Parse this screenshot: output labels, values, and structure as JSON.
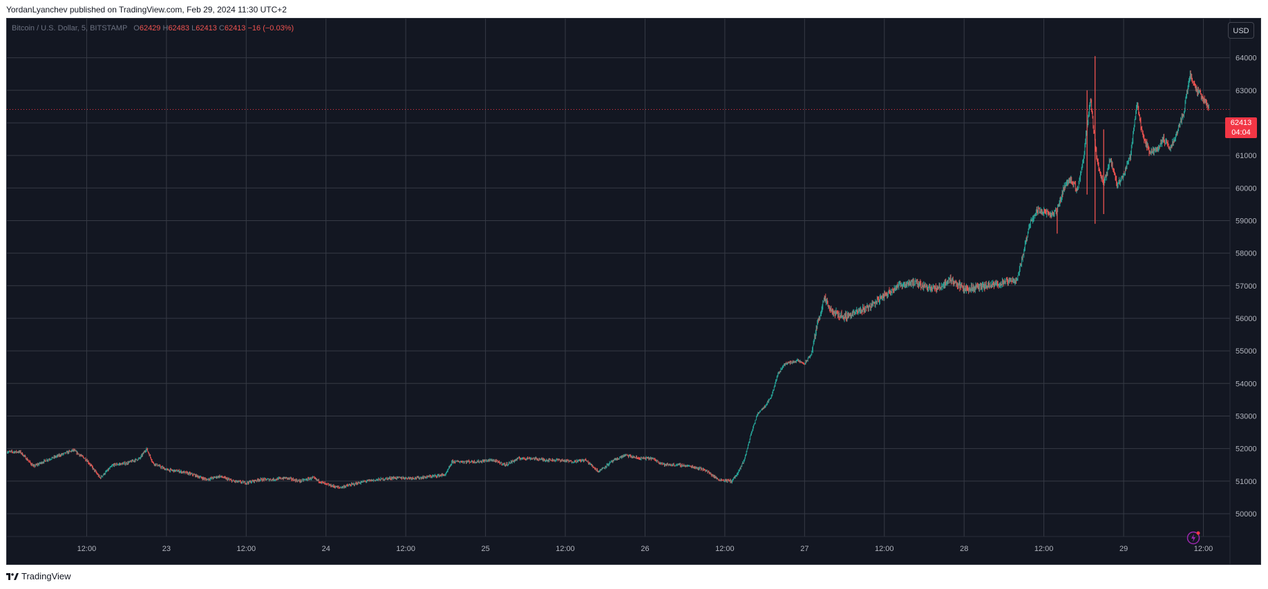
{
  "header": {
    "publisher_line": "YordanLyanchev published on TradingView.com, Feb 29, 2024 11:30 UTC+2"
  },
  "legend": {
    "symbol": "Bitcoin / U.S. Dollar, 5, BITSTAMP",
    "o_label": "O",
    "o_value": "62429",
    "h_label": "H",
    "h_value": "62483",
    "l_label": "L",
    "l_value": "62413",
    "c_label": "C",
    "c_value": "62413",
    "change": "−16 (−0.03%)"
  },
  "currency_button": {
    "label": "USD"
  },
  "price_tag": {
    "price": "62413",
    "countdown": "04:04"
  },
  "footer": {
    "brand": "TradingView"
  },
  "colors": {
    "background": "#131722",
    "grid": "#363a45",
    "up": "#26a69a",
    "down": "#ef5350",
    "tag": "#f23645"
  },
  "chart_data": {
    "type": "candlestick",
    "interval": "5",
    "y_ticks": [
      50000,
      51000,
      52000,
      53000,
      54000,
      55000,
      56000,
      57000,
      58000,
      59000,
      60000,
      61000,
      62000,
      63000,
      64000
    ],
    "y_tick_labels": [
      "50000",
      "51000",
      "52000",
      "53000",
      "54000",
      "55000",
      "56000",
      "57000",
      "58000",
      "59000",
      "60000",
      "61000",
      "62000",
      "63000",
      "64000"
    ],
    "ylim": [
      49300,
      65200
    ],
    "x_range_hours": [
      0,
      184
    ],
    "x_ticks": [
      {
        "hour": 12,
        "label": "12:00"
      },
      {
        "hour": 24,
        "label": "23"
      },
      {
        "hour": 36,
        "label": "12:00"
      },
      {
        "hour": 48,
        "label": "24"
      },
      {
        "hour": 60,
        "label": "12:00"
      },
      {
        "hour": 72,
        "label": "25"
      },
      {
        "hour": 84,
        "label": "12:00"
      },
      {
        "hour": 96,
        "label": "26"
      },
      {
        "hour": 108,
        "label": "12:00"
      },
      {
        "hour": 120,
        "label": "27"
      },
      {
        "hour": 132,
        "label": "12:00"
      },
      {
        "hour": 144,
        "label": "28"
      },
      {
        "hour": 156,
        "label": "12:00"
      },
      {
        "hour": 168,
        "label": "29"
      },
      {
        "hour": 180,
        "label": "12:00"
      }
    ],
    "last_price": 62413,
    "price_path": [
      [
        2,
        51900
      ],
      [
        4,
        51450
      ],
      [
        6,
        51650
      ],
      [
        8,
        51800
      ],
      [
        10,
        51950
      ],
      [
        12,
        51650
      ],
      [
        14,
        51100
      ],
      [
        16,
        51500
      ],
      [
        18,
        51550
      ],
      [
        20,
        51700
      ],
      [
        21,
        52000
      ],
      [
        22,
        51550
      ],
      [
        24,
        51350
      ],
      [
        26,
        51300
      ],
      [
        28,
        51200
      ],
      [
        30,
        51050
      ],
      [
        32,
        51150
      ],
      [
        34,
        51000
      ],
      [
        36,
        50950
      ],
      [
        38,
        51050
      ],
      [
        40,
        51050
      ],
      [
        42,
        51100
      ],
      [
        44,
        51000
      ],
      [
        46,
        51100
      ],
      [
        48,
        50900
      ],
      [
        50,
        50800
      ],
      [
        52,
        50900
      ],
      [
        54,
        51000
      ],
      [
        56,
        51050
      ],
      [
        58,
        51100
      ],
      [
        60,
        51100
      ],
      [
        62,
        51100
      ],
      [
        64,
        51150
      ],
      [
        66,
        51200
      ],
      [
        67,
        51600
      ],
      [
        69,
        51600
      ],
      [
        71,
        51600
      ],
      [
        73,
        51650
      ],
      [
        75,
        51500
      ],
      [
        77,
        51700
      ],
      [
        79,
        51700
      ],
      [
        81,
        51650
      ],
      [
        83,
        51650
      ],
      [
        85,
        51600
      ],
      [
        87,
        51650
      ],
      [
        89,
        51300
      ],
      [
        91,
        51600
      ],
      [
        93,
        51800
      ],
      [
        95,
        51700
      ],
      [
        97,
        51700
      ],
      [
        99,
        51500
      ],
      [
        101,
        51500
      ],
      [
        103,
        51450
      ],
      [
        105,
        51350
      ],
      [
        107,
        51050
      ],
      [
        109,
        51000
      ],
      [
        110,
        51250
      ],
      [
        111,
        51700
      ],
      [
        112,
        52500
      ],
      [
        113,
        53100
      ],
      [
        114,
        53300
      ],
      [
        115,
        53600
      ],
      [
        116,
        54300
      ],
      [
        117,
        54600
      ],
      [
        118,
        54650
      ],
      [
        119,
        54700
      ],
      [
        120,
        54600
      ],
      [
        121,
        54900
      ],
      [
        122,
        55900
      ],
      [
        123,
        56600
      ],
      [
        124,
        56200
      ],
      [
        126,
        56050
      ],
      [
        128,
        56200
      ],
      [
        130,
        56400
      ],
      [
        132,
        56700
      ],
      [
        134,
        57000
      ],
      [
        136,
        57100
      ],
      [
        138,
        57000
      ],
      [
        140,
        56900
      ],
      [
        142,
        57200
      ],
      [
        144,
        56900
      ],
      [
        146,
        56950
      ],
      [
        148,
        57000
      ],
      [
        150,
        57100
      ],
      [
        152,
        57200
      ],
      [
        153,
        58100
      ],
      [
        154,
        59000
      ],
      [
        155,
        59300
      ],
      [
        156,
        59300
      ],
      [
        157,
        59150
      ],
      [
        158,
        59300
      ],
      [
        159,
        60000
      ],
      [
        160,
        60300
      ],
      [
        161,
        59900
      ],
      [
        162,
        61000
      ],
      [
        163,
        62800
      ],
      [
        164,
        60800
      ],
      [
        165,
        60100
      ],
      [
        166,
        60900
      ],
      [
        167,
        60100
      ],
      [
        168,
        60400
      ],
      [
        169,
        61000
      ],
      [
        170,
        62600
      ],
      [
        171,
        61500
      ],
      [
        172,
        61100
      ],
      [
        173,
        61200
      ],
      [
        174,
        61500
      ],
      [
        175,
        61200
      ],
      [
        176,
        61700
      ],
      [
        177,
        62300
      ],
      [
        178,
        63500
      ],
      [
        179,
        63000
      ],
      [
        180,
        62750
      ],
      [
        180.9,
        62413
      ]
    ],
    "spikes": [
      {
        "hour": 163.7,
        "high": 64050,
        "low": 58900
      },
      {
        "hour": 162.5,
        "high": 63000,
        "low": 59800
      },
      {
        "hour": 165.0,
        "high": 61800,
        "low": 59200
      },
      {
        "hour": 158.0,
        "high": 59400,
        "low": 58600
      }
    ]
  }
}
